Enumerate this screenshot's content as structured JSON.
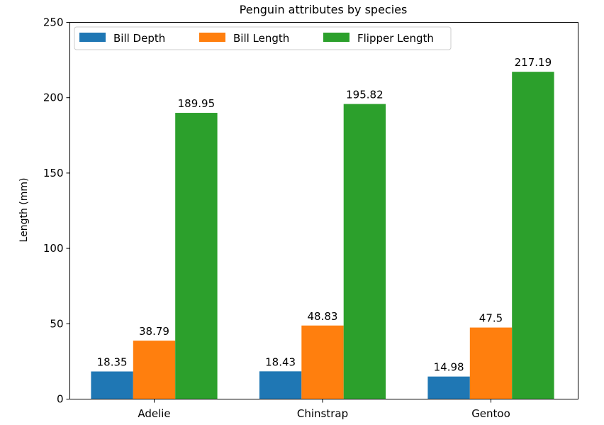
{
  "chart_data": {
    "type": "bar",
    "title": "Penguin attributes by species",
    "xlabel": "",
    "ylabel": "Length (mm)",
    "categories": [
      "Adelie",
      "Chinstrap",
      "Gentoo"
    ],
    "series": [
      {
        "name": "Bill Depth",
        "values": [
          18.35,
          18.43,
          14.98
        ],
        "labels": [
          "18.35",
          "18.43",
          "14.98"
        ],
        "color": "#1f77b4"
      },
      {
        "name": "Bill Length",
        "values": [
          38.79,
          48.83,
          47.5
        ],
        "labels": [
          "38.79",
          "48.83",
          "47.5"
        ],
        "color": "#ff7f0e"
      },
      {
        "name": "Flipper Length",
        "values": [
          189.95,
          195.82,
          217.19
        ],
        "labels": [
          "189.95",
          "195.82",
          "217.19"
        ],
        "color": "#2ca02c"
      }
    ],
    "yticks": [
      "0",
      "50",
      "100",
      "150",
      "200",
      "250"
    ],
    "ylim": [
      0,
      250
    ],
    "grid": false,
    "legend": "top-left"
  }
}
